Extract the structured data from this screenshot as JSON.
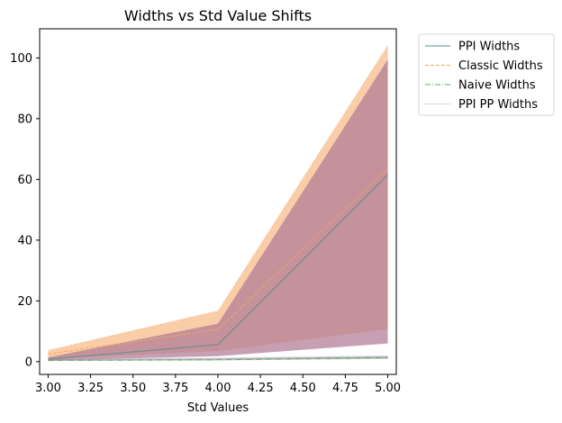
{
  "chart_data": {
    "type": "line",
    "title": "Widths vs Std Value Shifts",
    "xlabel": "Std Values",
    "ylabel": "",
    "xlim": [
      2.95,
      5.05
    ],
    "ylim": [
      -4.2,
      109.6
    ],
    "xticks": [
      "3.00",
      "3.25",
      "3.50",
      "3.75",
      "4.00",
      "4.25",
      "4.50",
      "4.75",
      "5.00"
    ],
    "yticks": [
      "0",
      "20",
      "40",
      "60",
      "80",
      "100"
    ],
    "x": [
      3.0,
      4.0,
      5.0
    ],
    "series": [
      {
        "name": "PPI Widths",
        "color": "#5e8f8f",
        "linestyle": "solid",
        "values": [
          0.8,
          5.6,
          61.5
        ],
        "band": {
          "lower": [
            0.4,
            1.8,
            6.0
          ],
          "upper": [
            1.4,
            12.5,
            99.5
          ],
          "color": "#b07a95"
        }
      },
      {
        "name": "Classic Widths",
        "color": "#f4a460",
        "linestyle": "dashed",
        "values": [
          2.5,
          10.6,
          63.5
        ],
        "band": {
          "lower": [
            0.9,
            3.5,
            10.8
          ],
          "upper": [
            3.8,
            16.8,
            104.2
          ],
          "color": "#f4a460"
        }
      },
      {
        "name": "Naive Widths",
        "color": "#59b359",
        "linestyle": "dashdot",
        "values": [
          0.4,
          0.6,
          1.3
        ],
        "band": {
          "lower": [
            0.2,
            0.4,
            0.9
          ],
          "upper": [
            0.6,
            0.9,
            1.8
          ],
          "color": "#59b359"
        }
      },
      {
        "name": "PPI PP Widths",
        "color": "#9a8aa0",
        "linestyle": "dotted",
        "values": [
          0.6,
          0.9,
          1.4
        ],
        "band": {
          "lower": [
            0.3,
            0.5,
            1.0
          ],
          "upper": [
            0.9,
            1.3,
            2.0
          ],
          "color": "#b59bc2"
        }
      }
    ],
    "grid": false,
    "legend_position": "outside-top-right"
  }
}
